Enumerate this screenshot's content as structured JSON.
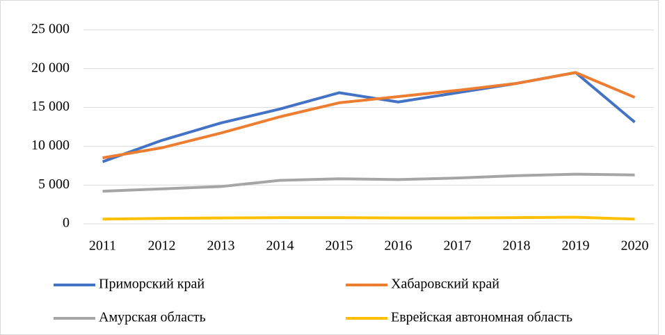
{
  "chart_data": {
    "type": "line",
    "categories": [
      "2011",
      "2012",
      "2013",
      "2014",
      "2015",
      "2016",
      "2017",
      "2018",
      "2019",
      "2020"
    ],
    "series": [
      {
        "name": "Приморский край",
        "color": "#4472c4",
        "values": [
          8000,
          10750,
          13000,
          14800,
          16900,
          15700,
          16900,
          18100,
          19500,
          13100
        ]
      },
      {
        "name": "Хабаровский край",
        "color": "#ed7d31",
        "values": [
          8500,
          9800,
          11700,
          13800,
          15600,
          16400,
          17200,
          18100,
          19500,
          16300
        ]
      },
      {
        "name": "Амурская область",
        "color": "#a5a5a5",
        "values": [
          4200,
          4500,
          4800,
          5600,
          5800,
          5700,
          5900,
          6200,
          6400,
          6300
        ]
      },
      {
        "name": "Еврейская автономная область",
        "color": "#ffc000",
        "values": [
          600,
          700,
          750,
          800,
          800,
          750,
          750,
          800,
          850,
          600
        ]
      }
    ],
    "ylim": [
      0,
      25000
    ],
    "yticks": [
      0,
      {
        "value": 5000,
        "label": "5 000"
      },
      {
        "value": 10000,
        "label": "10 000"
      },
      {
        "value": 15000,
        "label": "15 000"
      },
      {
        "value": 20000,
        "label": "20 000"
      },
      {
        "value": 25000,
        "label": "25 000"
      }
    ],
    "grid": true,
    "legend": "bottom"
  }
}
